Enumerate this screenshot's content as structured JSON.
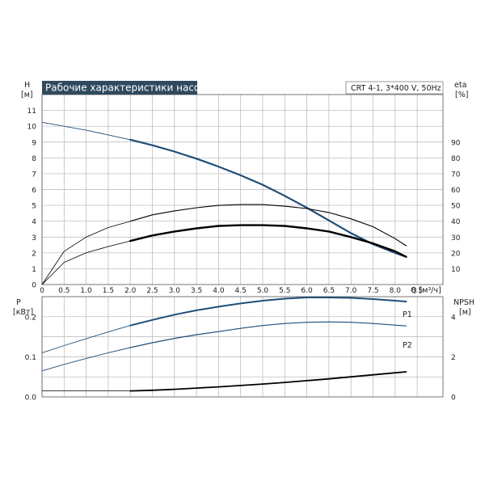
{
  "chart_title": "Рабочие характеристики насоса",
  "model": "CRT 4-1, 3*400 V, 50Hz",
  "top": {
    "y_left_label": "H",
    "y_left_unit": "[м]",
    "y_right_label": "eta",
    "y_right_unit": "[%]",
    "x_label": "Q [м³/ч]",
    "x_ticks": [
      "0",
      "0.5",
      "1.0",
      "1.5",
      "2.0",
      "2.5",
      "3.0",
      "3.5",
      "4.0",
      "4.5",
      "5.0",
      "5.5",
      "6.0",
      "6.5",
      "7.0",
      "7.5",
      "8.0",
      "8.5"
    ],
    "y_left_ticks": [
      "0",
      "1",
      "2",
      "3",
      "4",
      "5",
      "6",
      "7",
      "8",
      "9",
      "10",
      "11"
    ],
    "y_right_ticks": [
      "10",
      "20",
      "30",
      "40",
      "50",
      "60",
      "70",
      "80",
      "90"
    ]
  },
  "bottom": {
    "y_left_label": "P",
    "y_left_unit": "[кВт]",
    "y_right_label": "NPSH",
    "y_right_unit": "[м]",
    "y_left_ticks": [
      "0.0",
      "0.1",
      "0.2"
    ],
    "y_right_ticks": [
      "0",
      "2",
      "4"
    ],
    "label_p1": "P1",
    "label_p2": "P2"
  },
  "colors": {
    "curve_blue": "#1f4e79",
    "curve_black": "#000000",
    "label_blue": "#3a78b5",
    "title_bg": "#2f4a5e"
  },
  "chart_data": [
    {
      "type": "line",
      "title": "Рабочие характеристики насоса",
      "xlabel": "Q [м³/ч]",
      "ylabel": "H [м]",
      "xlim": [
        0,
        8.5
      ],
      "ylim": [
        0,
        12
      ],
      "y2label": "eta [%]",
      "y2lim": [
        0,
        120
      ],
      "grid": true,
      "series": [
        {
          "axis": "left",
          "x": [
            0,
            0.5,
            1.0,
            1.5,
            2.0,
            2.5,
            3.0,
            3.5,
            4.0,
            4.5,
            5.0,
            5.5,
            6.0,
            6.5,
            7.0,
            7.5,
            8.0,
            8.25
          ],
          "values": [
            10.25,
            10.0,
            9.75,
            9.45,
            9.15,
            8.8,
            8.4,
            7.95,
            7.45,
            6.9,
            6.3,
            5.6,
            4.85,
            4.05,
            3.25,
            2.55,
            2.0,
            1.75
          ]
        },
        {
          "axis": "right",
          "x": [
            0,
            0.5,
            1.0,
            1.5,
            2.0,
            2.5,
            3.0,
            3.5,
            4.0,
            4.5,
            5.0,
            5.5,
            6.0,
            6.5,
            7.0,
            7.5,
            8.0,
            8.25
          ],
          "values": [
            0,
            21,
            30,
            36,
            40,
            44,
            46.5,
            48.5,
            50,
            50.5,
            50.5,
            49.5,
            48,
            45.5,
            41.5,
            36.5,
            29,
            24.5
          ]
        },
        {
          "axis": "right",
          "x": [
            0,
            0.5,
            1.0,
            1.5,
            2.0,
            2.5,
            3.0,
            3.5,
            4.0,
            4.5,
            5.0,
            5.5,
            6.0,
            6.5,
            7.0,
            7.5,
            8.0,
            8.25
          ],
          "values": [
            0,
            14,
            20,
            24,
            27.5,
            31,
            33.5,
            35.5,
            37,
            37.5,
            37.5,
            37,
            35.5,
            33.5,
            30,
            26,
            21,
            17.5
          ]
        }
      ]
    },
    {
      "type": "line",
      "xlabel": "Q [м³/ч]",
      "ylabel": "P [кВт]",
      "xlim": [
        0,
        8.5
      ],
      "ylim": [
        0,
        0.25
      ],
      "y2label": "NPSH [м]",
      "y2lim": [
        0,
        5
      ],
      "grid": true,
      "series": [
        {
          "name": "P1",
          "axis": "left",
          "x": [
            0,
            0.5,
            1.0,
            1.5,
            2.0,
            2.5,
            3.0,
            3.5,
            4.0,
            4.5,
            5.0,
            5.5,
            6.0,
            6.5,
            7.0,
            7.5,
            8.0,
            8.25
          ],
          "values": [
            0.11,
            0.128,
            0.145,
            0.162,
            0.178,
            0.192,
            0.205,
            0.216,
            0.225,
            0.233,
            0.24,
            0.245,
            0.248,
            0.248,
            0.247,
            0.244,
            0.24,
            0.238
          ]
        },
        {
          "name": "P2",
          "axis": "left",
          "x": [
            0,
            0.5,
            1.0,
            1.5,
            2.0,
            2.5,
            3.0,
            3.5,
            4.0,
            4.5,
            5.0,
            5.5,
            6.0,
            6.5,
            7.0,
            7.5,
            8.0,
            8.25
          ],
          "values": [
            0.065,
            0.081,
            0.096,
            0.11,
            0.123,
            0.135,
            0.146,
            0.155,
            0.163,
            0.171,
            0.178,
            0.183,
            0.186,
            0.187,
            0.186,
            0.183,
            0.179,
            0.177
          ]
        },
        {
          "axis": "right",
          "x": [
            0,
            0.5,
            1.0,
            1.5,
            2.0,
            2.5,
            3.0,
            3.5,
            4.0,
            4.5,
            5.0,
            5.5,
            6.0,
            6.5,
            7.0,
            7.5,
            8.0,
            8.25
          ],
          "values": [
            0.3,
            0.3,
            0.3,
            0.3,
            0.3,
            0.33,
            0.38,
            0.44,
            0.5,
            0.57,
            0.64,
            0.72,
            0.81,
            0.9,
            1.0,
            1.1,
            1.2,
            1.25
          ]
        }
      ]
    }
  ]
}
